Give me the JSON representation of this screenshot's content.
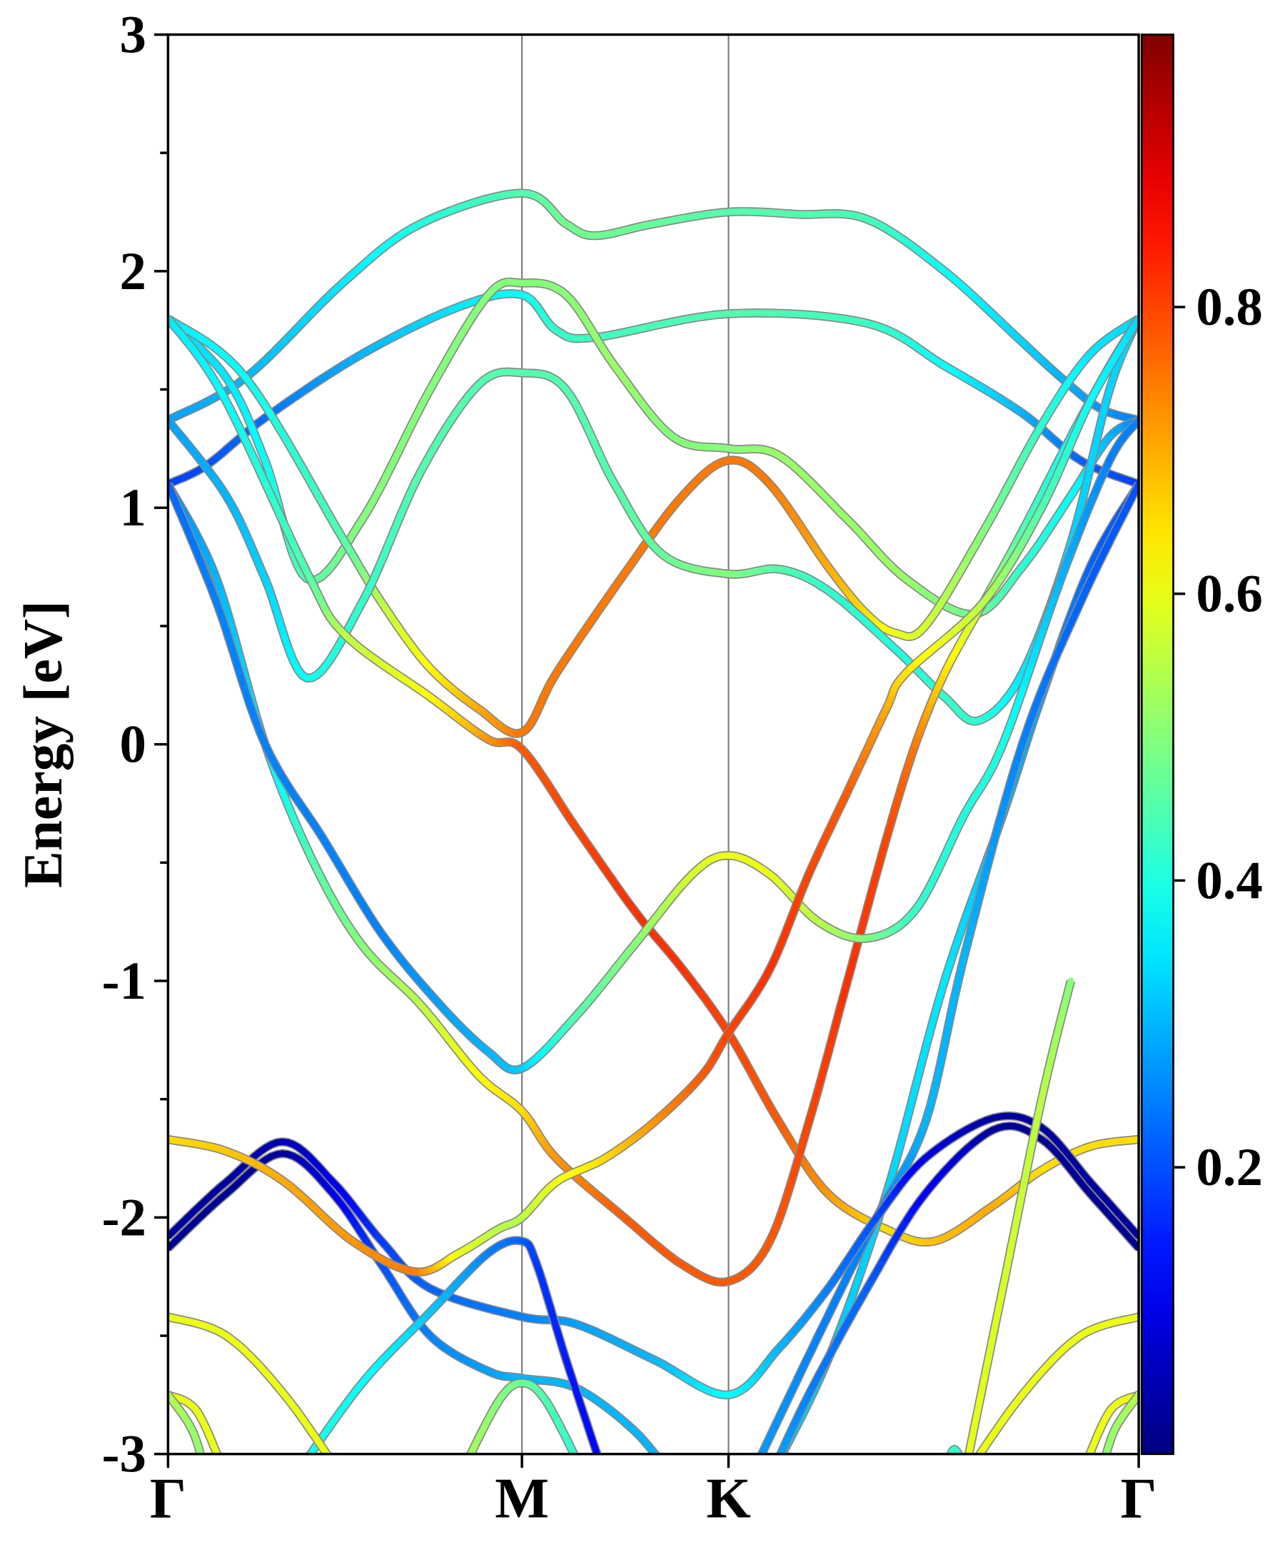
{
  "chart_data": {
    "type": "line",
    "title": "",
    "xlabel": "",
    "ylabel": "Energy [eV]",
    "ylim": [
      -3,
      3
    ],
    "yticks": [
      "3",
      "2",
      "1",
      "0",
      "-1",
      "-2",
      "-3"
    ],
    "ytick_values": [
      3,
      2,
      1,
      0,
      -1,
      -2,
      -3
    ],
    "kpoints": [
      {
        "label": "Γ",
        "k": 0
      },
      {
        "label": "M",
        "k": 0.3646
      },
      {
        "label": "K",
        "k": 0.5774
      },
      {
        "label": "Γ",
        "k": 1
      }
    ],
    "colorbar": {
      "colormap": "jet",
      "range": [
        0,
        0.99
      ],
      "ticks": [
        "0.2",
        "0.4",
        "0.6",
        "0.8"
      ],
      "tick_values": [
        0.2,
        0.4,
        0.6,
        0.8
      ]
    },
    "point_format": "[k, energy_eV, weight]",
    "bands": [
      [
        [
          0,
          1.37,
          0.28
        ],
        [
          0.08,
          1.55,
          0.3
        ],
        [
          0.18,
          1.95,
          0.35
        ],
        [
          0.26,
          2.2,
          0.4
        ],
        [
          0.3646,
          2.33,
          0.45
        ],
        [
          0.41,
          2.2,
          0.48
        ],
        [
          0.44,
          2.15,
          0.48
        ],
        [
          0.5,
          2.2,
          0.47
        ],
        [
          0.5774,
          2.25,
          0.45
        ],
        [
          0.65,
          2.24,
          0.45
        ],
        [
          0.72,
          2.22,
          0.44
        ],
        [
          0.8,
          2.0,
          0.38
        ],
        [
          0.88,
          1.7,
          0.33
        ],
        [
          0.92,
          1.55,
          0.3
        ],
        [
          0.96,
          1.42,
          0.27
        ],
        [
          1,
          1.37,
          0.25
        ]
      ],
      [
        [
          0,
          1.1,
          0.18
        ],
        [
          0.04,
          1.18,
          0.2
        ],
        [
          0.1,
          1.38,
          0.23
        ],
        [
          0.2,
          1.65,
          0.3
        ],
        [
          0.3,
          1.85,
          0.35
        ],
        [
          0.3646,
          1.9,
          0.38
        ],
        [
          0.4,
          1.75,
          0.42
        ],
        [
          0.44,
          1.72,
          0.43
        ],
        [
          0.5774,
          1.82,
          0.45
        ],
        [
          0.72,
          1.78,
          0.43
        ],
        [
          0.8,
          1.6,
          0.38
        ],
        [
          0.88,
          1.4,
          0.3
        ],
        [
          0.94,
          1.2,
          0.22
        ],
        [
          1,
          1.1,
          0.18
        ]
      ],
      [
        [
          0,
          1.8,
          0.33
        ],
        [
          0.06,
          1.55,
          0.35
        ],
        [
          0.1,
          1.2,
          0.38
        ],
        [
          0.143,
          0.7,
          0.45
        ],
        [
          0.2,
          0.95,
          0.5
        ],
        [
          0.27,
          1.5,
          0.5
        ],
        [
          0.33,
          1.9,
          0.5
        ],
        [
          0.3646,
          1.95,
          0.5
        ],
        [
          0.41,
          1.9,
          0.5
        ],
        [
          0.46,
          1.6,
          0.52
        ],
        [
          0.52,
          1.3,
          0.5
        ],
        [
          0.5774,
          1.25,
          0.5
        ],
        [
          0.63,
          1.22,
          0.52
        ],
        [
          0.7,
          0.95,
          0.52
        ],
        [
          0.76,
          0.7,
          0.52
        ],
        [
          0.83,
          0.55,
          0.48
        ],
        [
          0.88,
          0.75,
          0.42
        ],
        [
          0.93,
          1.05,
          0.38
        ],
        [
          0.97,
          1.3,
          0.3
        ],
        [
          1,
          1.37,
          0.25
        ]
      ],
      [
        [
          0,
          1.8,
          0.35
        ],
        [
          0.08,
          1.55,
          0.38
        ],
        [
          0.18,
          0.87,
          0.45
        ],
        [
          0.22,
          0.6,
          0.55
        ],
        [
          0.268,
          0.33,
          0.62
        ],
        [
          0.32,
          0.15,
          0.7
        ],
        [
          0.3646,
          0.05,
          0.75
        ],
        [
          0.4,
          0.3,
          0.75
        ],
        [
          0.47,
          0.72,
          0.75
        ],
        [
          0.53,
          1.05,
          0.75
        ],
        [
          0.5774,
          1.2,
          0.75
        ],
        [
          0.62,
          1.1,
          0.75
        ],
        [
          0.68,
          0.75,
          0.7
        ],
        [
          0.72,
          0.55,
          0.65
        ],
        [
          0.75,
          0.47,
          0.6
        ],
        [
          0.78,
          0.5,
          0.58
        ],
        [
          0.84,
          0.9,
          0.5
        ],
        [
          0.9,
          1.35,
          0.42
        ],
        [
          0.95,
          1.65,
          0.35
        ],
        [
          1,
          1.8,
          0.33
        ]
      ],
      [
        [
          0,
          1.37,
          0.28
        ],
        [
          0.06,
          1.05,
          0.3
        ],
        [
          0.1,
          0.7,
          0.33
        ],
        [
          0.143,
          0.28,
          0.38
        ],
        [
          0.2,
          0.6,
          0.42
        ],
        [
          0.26,
          1.15,
          0.45
        ],
        [
          0.32,
          1.52,
          0.45
        ],
        [
          0.3646,
          1.57,
          0.45
        ],
        [
          0.41,
          1.5,
          0.45
        ],
        [
          0.46,
          1.1,
          0.45
        ],
        [
          0.51,
          0.8,
          0.47
        ],
        [
          0.5774,
          0.72,
          0.5
        ],
        [
          0.63,
          0.74,
          0.45
        ],
        [
          0.68,
          0.65,
          0.42
        ],
        [
          0.75,
          0.4,
          0.4
        ],
        [
          0.8,
          0.2,
          0.42
        ],
        [
          0.835,
          0.1,
          0.42
        ],
        [
          0.88,
          0.3,
          0.35
        ],
        [
          0.93,
          0.85,
          0.33
        ],
        [
          0.97,
          1.5,
          0.33
        ],
        [
          1,
          1.8,
          0.33
        ]
      ],
      [
        [
          0,
          1.8,
          0.35
        ],
        [
          0.056,
          1.48,
          0.37
        ],
        [
          0.144,
          0.72,
          0.45
        ],
        [
          0.183,
          0.46,
          0.55
        ],
        [
          0.27,
          0.2,
          0.62
        ],
        [
          0.33,
          0.02,
          0.72
        ],
        [
          0.3646,
          -0.02,
          0.78
        ],
        [
          0.42,
          -0.35,
          0.8
        ],
        [
          0.48,
          -0.7,
          0.82
        ],
        [
          0.53,
          -0.95,
          0.82
        ],
        [
          0.5774,
          -1.22,
          0.8
        ],
        [
          0.63,
          -1.6,
          0.78
        ],
        [
          0.68,
          -1.9,
          0.72
        ],
        [
          0.74,
          -2.05,
          0.65
        ],
        [
          0.79,
          -2.1,
          0.68
        ],
        [
          0.85,
          -1.95,
          0.7
        ],
        [
          0.9,
          -1.8,
          0.65
        ],
        [
          0.95,
          -1.7,
          0.65
        ],
        [
          1,
          -1.67,
          0.65
        ]
      ],
      [
        [
          0,
          1.1,
          0.25
        ],
        [
          0.05,
          0.7,
          0.3
        ],
        [
          0.1,
          0.0,
          0.35
        ],
        [
          0.15,
          -0.5,
          0.45
        ],
        [
          0.2,
          -0.85,
          0.5
        ],
        [
          0.26,
          -1.1,
          0.55
        ],
        [
          0.32,
          -1.4,
          0.62
        ],
        [
          0.3646,
          -1.55,
          0.65
        ],
        [
          0.4,
          -1.75,
          0.72
        ],
        [
          0.47,
          -2.0,
          0.78
        ],
        [
          0.53,
          -2.2,
          0.78
        ],
        [
          0.5774,
          -2.27,
          0.78
        ],
        [
          0.62,
          -2.1,
          0.78
        ],
        [
          0.66,
          -1.6,
          0.8
        ],
        [
          0.7,
          -1.0,
          0.82
        ],
        [
          0.74,
          -0.4,
          0.8
        ],
        [
          0.77,
          0.0,
          0.75
        ],
        [
          0.8,
          0.3,
          0.65
        ],
        [
          0.84,
          0.6,
          0.55
        ],
        [
          0.88,
          0.9,
          0.45
        ],
        [
          0.93,
          1.3,
          0.38
        ],
        [
          0.97,
          1.6,
          0.35
        ],
        [
          1,
          1.8,
          0.33
        ]
      ],
      [
        [
          0,
          1.1,
          0.22
        ],
        [
          0.05,
          0.6,
          0.25
        ],
        [
          0.1,
          0.0,
          0.25
        ],
        [
          0.16,
          -0.4,
          0.25
        ],
        [
          0.22,
          -0.8,
          0.25
        ],
        [
          0.28,
          -1.1,
          0.28
        ],
        [
          0.33,
          -1.3,
          0.3
        ],
        [
          0.3646,
          -1.37,
          0.32
        ],
        [
          0.42,
          -1.15,
          0.45
        ],
        [
          0.48,
          -0.85,
          0.5
        ],
        [
          0.54,
          -0.55,
          0.58
        ],
        [
          0.5774,
          -0.47,
          0.6
        ],
        [
          0.62,
          -0.55,
          0.6
        ],
        [
          0.67,
          -0.75,
          0.55
        ],
        [
          0.72,
          -0.82,
          0.5
        ],
        [
          0.77,
          -0.7,
          0.42
        ],
        [
          0.82,
          -0.3,
          0.4
        ],
        [
          0.86,
          0.0,
          0.4
        ],
        [
          0.92,
          0.7,
          0.3
        ],
        [
          0.97,
          1.2,
          0.25
        ],
        [
          1,
          1.37,
          0.25
        ]
      ],
      [
        [
          1,
          1.1,
          0.2
        ],
        [
          0.95,
          0.75,
          0.22
        ],
        [
          0.9,
          0.2,
          0.28
        ],
        [
          0.86,
          -0.3,
          0.3
        ],
        [
          0.8,
          -1.0,
          0.35
        ],
        [
          0.74,
          -1.9,
          0.33
        ],
        [
          0.68,
          -2.6,
          0.32
        ],
        [
          0.62,
          -3.1,
          0.32
        ]
      ],
      [
        [
          1,
          1.1,
          0.2
        ],
        [
          0.94,
          0.6,
          0.22
        ],
        [
          0.88,
          0.0,
          0.25
        ],
        [
          0.82,
          -0.9,
          0.3
        ],
        [
          0.78,
          -1.6,
          0.3
        ],
        [
          0.73,
          -2.0,
          0.25
        ],
        [
          0.67,
          -2.5,
          0.25
        ],
        [
          0.6,
          -3.1,
          0.28
        ]
      ],
      [
        [
          0,
          -2.08,
          0.03
        ],
        [
          0.06,
          -1.85,
          0.03
        ],
        [
          0.118,
          -1.68,
          0.05
        ],
        [
          0.17,
          -1.85,
          0.1
        ],
        [
          0.22,
          -2.1,
          0.18
        ],
        [
          0.27,
          -2.3,
          0.22
        ],
        [
          0.3646,
          -2.42,
          0.25
        ],
        [
          0.42,
          -2.45,
          0.28
        ],
        [
          0.5,
          -2.6,
          0.3
        ],
        [
          0.5774,
          -2.75,
          0.38
        ],
        [
          0.63,
          -2.55,
          0.3
        ],
        [
          0.68,
          -2.3,
          0.25
        ],
        [
          0.73,
          -2.0,
          0.2
        ],
        [
          0.78,
          -1.75,
          0.1
        ],
        [
          0.85,
          -1.58,
          0.03
        ],
        [
          0.9,
          -1.62,
          0.03
        ],
        [
          0.95,
          -1.85,
          0.03
        ],
        [
          1,
          -2.08,
          0.03
        ]
      ],
      [
        [
          0,
          -2.13,
          0.02
        ],
        [
          0.06,
          -1.9,
          0.02
        ],
        [
          0.118,
          -1.73,
          0.03
        ],
        [
          0.17,
          -1.9,
          0.1
        ],
        [
          0.22,
          -2.2,
          0.2
        ],
        [
          0.27,
          -2.5,
          0.25
        ],
        [
          0.33,
          -2.65,
          0.28
        ],
        [
          0.3646,
          -2.68,
          0.3
        ],
        [
          0.42,
          -2.72,
          0.3
        ],
        [
          0.48,
          -2.9,
          0.3
        ],
        [
          0.52,
          -3.1,
          0.3
        ]
      ],
      [
        [
          0.62,
          -3.1,
          0.3
        ],
        [
          0.66,
          -2.75,
          0.25
        ],
        [
          0.72,
          -2.3,
          0.22
        ],
        [
          0.78,
          -1.9,
          0.12
        ],
        [
          0.85,
          -1.63,
          0.03
        ],
        [
          0.9,
          -1.67,
          0.02
        ],
        [
          0.95,
          -1.9,
          0.02
        ],
        [
          1,
          -2.13,
          0.02
        ]
      ],
      [
        [
          0,
          -1.67,
          0.65
        ],
        [
          0.06,
          -1.72,
          0.67
        ],
        [
          0.12,
          -1.85,
          0.7
        ],
        [
          0.19,
          -2.1,
          0.72
        ],
        [
          0.255,
          -2.23,
          0.75
        ],
        [
          0.3,
          -2.15,
          0.6
        ],
        [
          0.34,
          -2.05,
          0.55
        ],
        [
          0.3646,
          -2.0,
          0.55
        ],
        [
          0.4,
          -1.85,
          0.6
        ],
        [
          0.45,
          -1.75,
          0.65
        ],
        [
          0.5,
          -1.6,
          0.72
        ],
        [
          0.55,
          -1.4,
          0.78
        ],
        [
          0.5774,
          -1.22,
          0.8
        ],
        [
          0.62,
          -0.95,
          0.82
        ],
        [
          0.66,
          -0.55,
          0.8
        ],
        [
          0.7,
          -0.2,
          0.78
        ],
        [
          0.74,
          0.15,
          0.7
        ],
        [
          0.76,
          0.3,
          0.65
        ],
        [
          0.84,
          0.6,
          0.55
        ],
        [
          0.9,
          1.0,
          0.45
        ],
        [
          0.95,
          1.45,
          0.38
        ],
        [
          1,
          1.8,
          0.33
        ]
      ],
      [
        [
          0.13,
          -3.1,
          0.4
        ],
        [
          0.2,
          -2.7,
          0.38
        ],
        [
          0.27,
          -2.4,
          0.32
        ],
        [
          0.33,
          -2.15,
          0.25
        ],
        [
          0.3646,
          -2.1,
          0.22
        ],
        [
          0.38,
          -2.2,
          0.18
        ],
        [
          0.41,
          -2.6,
          0.15
        ],
        [
          0.45,
          -3.1,
          0.12
        ]
      ],
      [
        [
          0,
          -2.42,
          0.6
        ],
        [
          0.06,
          -2.5,
          0.6
        ],
        [
          0.12,
          -2.75,
          0.6
        ],
        [
          0.18,
          -3.1,
          0.6
        ]
      ],
      [
        [
          1,
          -2.42,
          0.6
        ],
        [
          0.94,
          -2.5,
          0.6
        ],
        [
          0.88,
          -2.75,
          0.6
        ],
        [
          0.82,
          -3.1,
          0.6
        ]
      ],
      [
        [
          0,
          -2.75,
          0.6
        ],
        [
          0.03,
          -2.82,
          0.6
        ],
        [
          0.06,
          -3.1,
          0.6
        ]
      ],
      [
        [
          0,
          -2.75,
          0.55
        ],
        [
          0.025,
          -2.9,
          0.52
        ],
        [
          0.04,
          -3.1,
          0.5
        ]
      ],
      [
        [
          1,
          -2.75,
          0.6
        ],
        [
          0.97,
          -2.82,
          0.6
        ],
        [
          0.94,
          -3.1,
          0.6
        ]
      ],
      [
        [
          1,
          -2.75,
          0.55
        ],
        [
          0.975,
          -2.9,
          0.52
        ],
        [
          0.96,
          -3.1,
          0.5
        ]
      ],
      [
        [
          0.3,
          -3.1,
          0.55
        ],
        [
          0.34,
          -2.78,
          0.5
        ],
        [
          0.3646,
          -2.7,
          0.48
        ],
        [
          0.39,
          -2.78,
          0.45
        ],
        [
          0.43,
          -3.1,
          0.4
        ]
      ],
      [
        [
          0.8,
          -3.1,
          0.45
        ],
        [
          0.81,
          -2.98,
          0.42
        ],
        [
          0.825,
          -3.1,
          0.42
        ]
      ],
      [
        [
          0.82,
          -3.1,
          0.6
        ],
        [
          0.86,
          -2.3,
          0.58
        ],
        [
          0.9,
          -1.5,
          0.55
        ],
        [
          0.93,
          -1.0,
          0.5
        ]
      ]
    ]
  }
}
